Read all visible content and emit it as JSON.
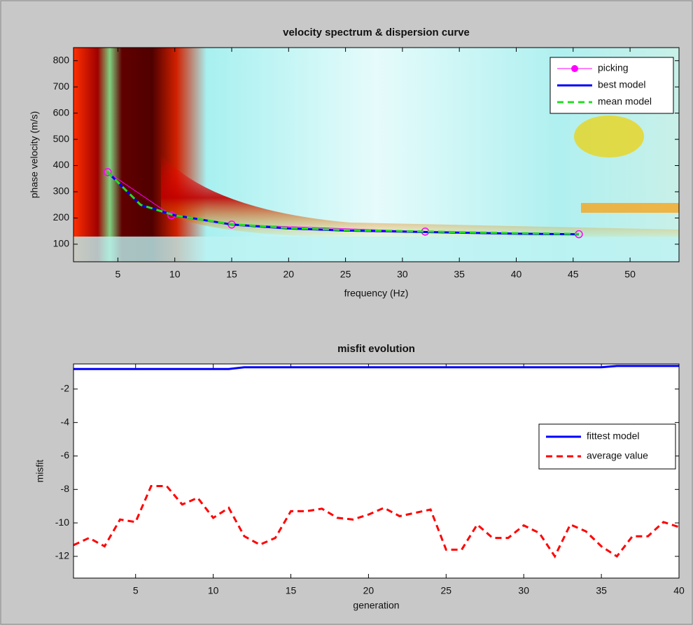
{
  "chart_data": [
    {
      "type": "line",
      "title": "velocity spectrum & dispersion curve",
      "x_label": "frequency (Hz)",
      "y_label": "phase velocity (m/s)",
      "xlim": [
        1.1,
        54.3
      ],
      "ylim": [
        33,
        850
      ],
      "xticks": [
        5,
        10,
        15,
        20,
        25,
        30,
        35,
        40,
        45,
        50
      ],
      "yticks": [
        100,
        200,
        300,
        400,
        500,
        600,
        700,
        800
      ],
      "legend": "upper right",
      "series": [
        {
          "name": "picking",
          "color": "#ff00ff",
          "marker": "o",
          "dash": false,
          "x": [
            4.1,
            9.7,
            15,
            32,
            45.5
          ],
          "values": [
            375,
            210,
            175,
            148,
            138
          ]
        },
        {
          "name": "best model",
          "color": "#0000ff",
          "marker": "none",
          "dash": false,
          "x": [
            4.1,
            7,
            10,
            15,
            20,
            25,
            30,
            35,
            40,
            45.5
          ],
          "values": [
            375,
            250,
            210,
            175,
            160,
            152,
            148,
            144,
            140,
            138
          ]
        },
        {
          "name": "mean model",
          "color": "#22dd22",
          "marker": "none",
          "dash": true,
          "x": [
            4.1,
            7,
            10,
            15,
            20,
            25,
            30,
            35,
            40,
            45.5
          ],
          "values": [
            375,
            250,
            210,
            176,
            162,
            154,
            150,
            146,
            142,
            139
          ]
        }
      ]
    },
    {
      "type": "line",
      "title": "misfit evolution",
      "x_label": "generation",
      "y_label": "misfit",
      "xlim": [
        1,
        40
      ],
      "ylim": [
        -13.3,
        -0.5
      ],
      "xticks": [
        5,
        10,
        15,
        20,
        25,
        30,
        35,
        40
      ],
      "yticks": [
        -2,
        -4,
        -6,
        -8,
        -10,
        -12
      ],
      "legend": "center right",
      "series": [
        {
          "name": "fittest model",
          "color": "#0000ff",
          "marker": "none",
          "dash": false,
          "x": [
            1,
            2,
            3,
            4,
            5,
            6,
            7,
            8,
            9,
            10,
            11,
            12,
            13,
            14,
            15,
            16,
            17,
            18,
            19,
            20,
            21,
            22,
            23,
            24,
            25,
            26,
            27,
            28,
            29,
            30,
            31,
            32,
            33,
            34,
            35,
            36,
            37,
            38,
            39,
            40
          ],
          "values": [
            -0.8,
            -0.8,
            -0.8,
            -0.8,
            -0.8,
            -0.8,
            -0.8,
            -0.8,
            -0.8,
            -0.8,
            -0.8,
            -0.7,
            -0.7,
            -0.7,
            -0.7,
            -0.7,
            -0.7,
            -0.7,
            -0.7,
            -0.7,
            -0.7,
            -0.7,
            -0.7,
            -0.7,
            -0.7,
            -0.7,
            -0.7,
            -0.7,
            -0.7,
            -0.7,
            -0.7,
            -0.7,
            -0.7,
            -0.7,
            -0.7,
            -0.62,
            -0.62,
            -0.62,
            -0.62,
            -0.62
          ]
        },
        {
          "name": "average value",
          "color": "#ff0000",
          "marker": "none",
          "dash": true,
          "x": [
            1,
            2,
            3,
            4,
            5,
            6,
            7,
            8,
            9,
            10,
            11,
            12,
            13,
            14,
            15,
            16,
            17,
            18,
            19,
            20,
            21,
            22,
            23,
            24,
            25,
            26,
            27,
            28,
            29,
            30,
            31,
            32,
            33,
            34,
            35,
            36,
            37,
            38,
            39,
            40
          ],
          "values": [
            -11.33,
            -10.9,
            -11.4,
            -9.8,
            -9.95,
            -7.8,
            -7.8,
            -8.9,
            -8.5,
            -9.7,
            -9.1,
            -10.8,
            -11.3,
            -10.9,
            -9.3,
            -9.3,
            -9.15,
            -9.7,
            -9.8,
            -9.5,
            -9.1,
            -9.6,
            -9.4,
            -9.2,
            -11.6,
            -11.6,
            -10.1,
            -10.9,
            -10.9,
            -10.15,
            -10.6,
            -12.0,
            -10.1,
            -10.5,
            -11.4,
            -12.0,
            -10.8,
            -10.8,
            -9.95,
            -10.25
          ]
        }
      ]
    }
  ]
}
